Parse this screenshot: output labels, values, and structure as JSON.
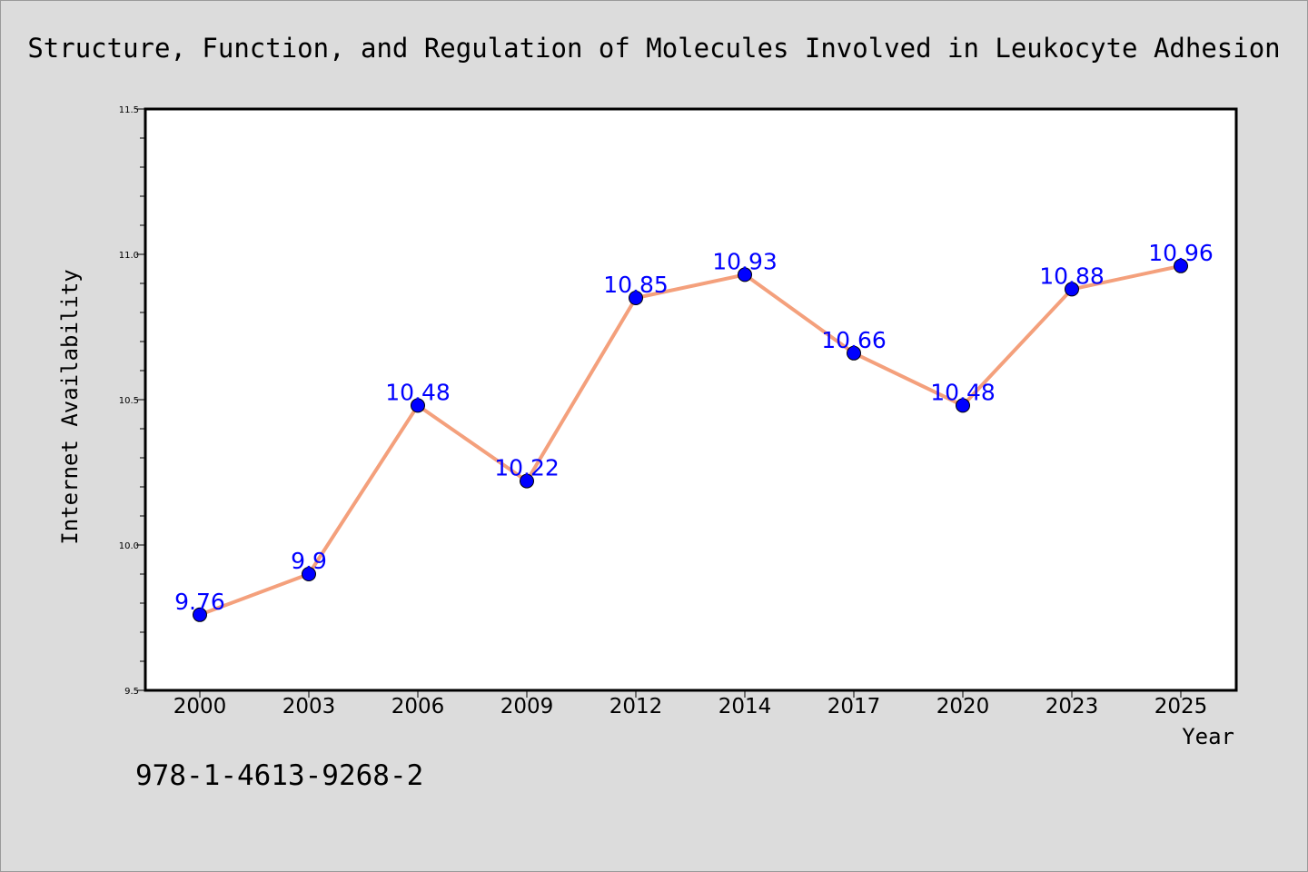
{
  "chart_data": {
    "type": "line",
    "title": "Structure, Function, and Regulation of Molecules Involved in Leukocyte Adhesion",
    "xlabel": "Year",
    "ylabel": "Internet Availability",
    "categories": [
      "2000",
      "2003",
      "2006",
      "2009",
      "2012",
      "2014",
      "2017",
      "2020",
      "2023",
      "2025"
    ],
    "series": [
      {
        "values": [
          9.76,
          9.9,
          10.48,
          10.22,
          10.85,
          10.93,
          10.66,
          10.48,
          10.88,
          10.96
        ],
        "data_labels": [
          "9.76",
          "9.9",
          "10.48",
          "10.22",
          "10.85",
          "10.93",
          "10.66",
          "10.48",
          "10.88",
          "10.96"
        ],
        "line_color": "#f4a07c",
        "marker_color": "#0000ff",
        "label_color": "#0000ff"
      }
    ],
    "ylim": [
      9.5,
      11.5
    ],
    "yticks": [
      "9.5",
      "10.0",
      "10.5",
      "11.0",
      "11.5"
    ],
    "ytick_values": [
      9.5,
      10.0,
      10.5,
      11.0,
      11.5
    ],
    "grid": false,
    "legend": "none"
  },
  "footer": {
    "isbn": "978-1-4613-9268-2"
  },
  "colors": {
    "background": "#dcdcdc",
    "plot_background": "#ffffff"
  }
}
